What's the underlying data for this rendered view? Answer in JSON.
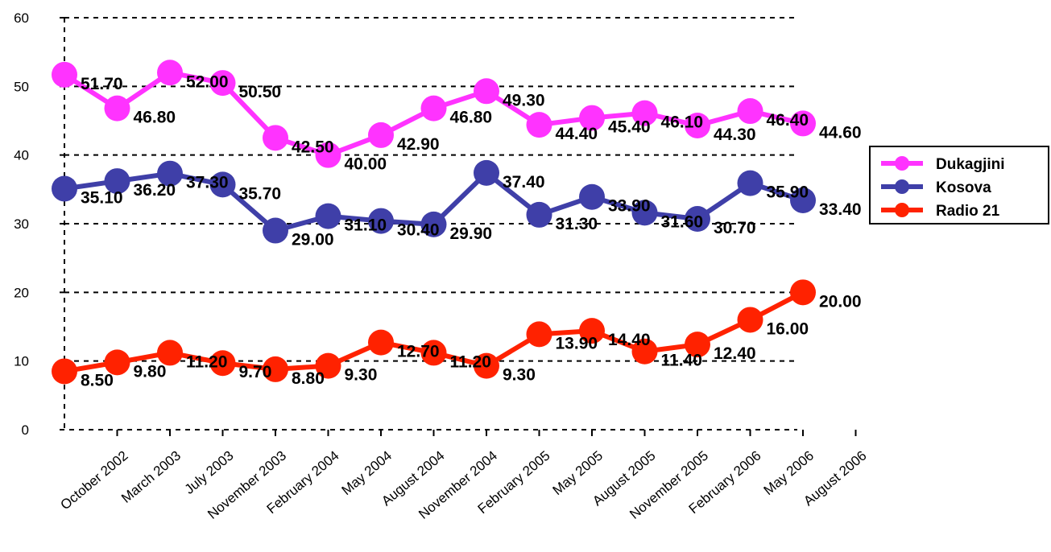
{
  "chart_data": {
    "type": "line",
    "categories": [
      "October 2002",
      "March 2003",
      "July 2003",
      "November 2003",
      "February 2004",
      "May 2004",
      "August 2004",
      "November 2004",
      "February 2005",
      "May 2005",
      "August 2005",
      "November 2005",
      "February 2006",
      "May 2006",
      "August 2006"
    ],
    "series": [
      {
        "name": "Dukagjini",
        "color": "#ff33ff",
        "values": [
          51.7,
          46.8,
          52.0,
          50.5,
          42.5,
          40.0,
          42.9,
          46.8,
          49.3,
          44.4,
          45.4,
          46.1,
          44.3,
          46.4,
          44.6
        ],
        "labels": [
          "51.70",
          "46.80",
          "52.00",
          "50.50",
          "42.50",
          "40.00",
          "42.90",
          "46.80",
          "49.30",
          "44.40",
          "45.40",
          "46.10",
          "44.30",
          "46.40",
          "44.60"
        ]
      },
      {
        "name": "Kosova",
        "color": "#3f3fa8",
        "values": [
          35.1,
          36.2,
          37.3,
          35.7,
          29.0,
          31.1,
          30.4,
          29.9,
          37.4,
          31.3,
          33.9,
          31.6,
          30.7,
          35.9,
          33.4
        ],
        "labels": [
          "35.10",
          "36.20",
          "37.30",
          "35.70",
          "29.00",
          "31.10",
          "30.40",
          "29.90",
          "37.40",
          "31.30",
          "33.90",
          "31.60",
          "30.70",
          "35.90",
          "33.40"
        ]
      },
      {
        "name": "Radio 21",
        "color": "#ff2200",
        "values": [
          8.5,
          9.8,
          11.2,
          9.7,
          8.8,
          9.3,
          12.7,
          11.2,
          9.3,
          13.9,
          14.4,
          11.4,
          12.4,
          16.0,
          20.0
        ],
        "labels": [
          "8.50",
          "9.80",
          "11.20",
          "9.70",
          "8.80",
          "9.30",
          "12.70",
          "11.20",
          "9.30",
          "13.90",
          "14.40",
          "11.40",
          "12.40",
          "16.00",
          "20.00"
        ]
      }
    ],
    "yticks": [
      "0",
      "10",
      "20",
      "30",
      "40",
      "50",
      "60"
    ],
    "ylim": [
      0,
      60
    ],
    "grid": true,
    "legend_position": "right"
  }
}
